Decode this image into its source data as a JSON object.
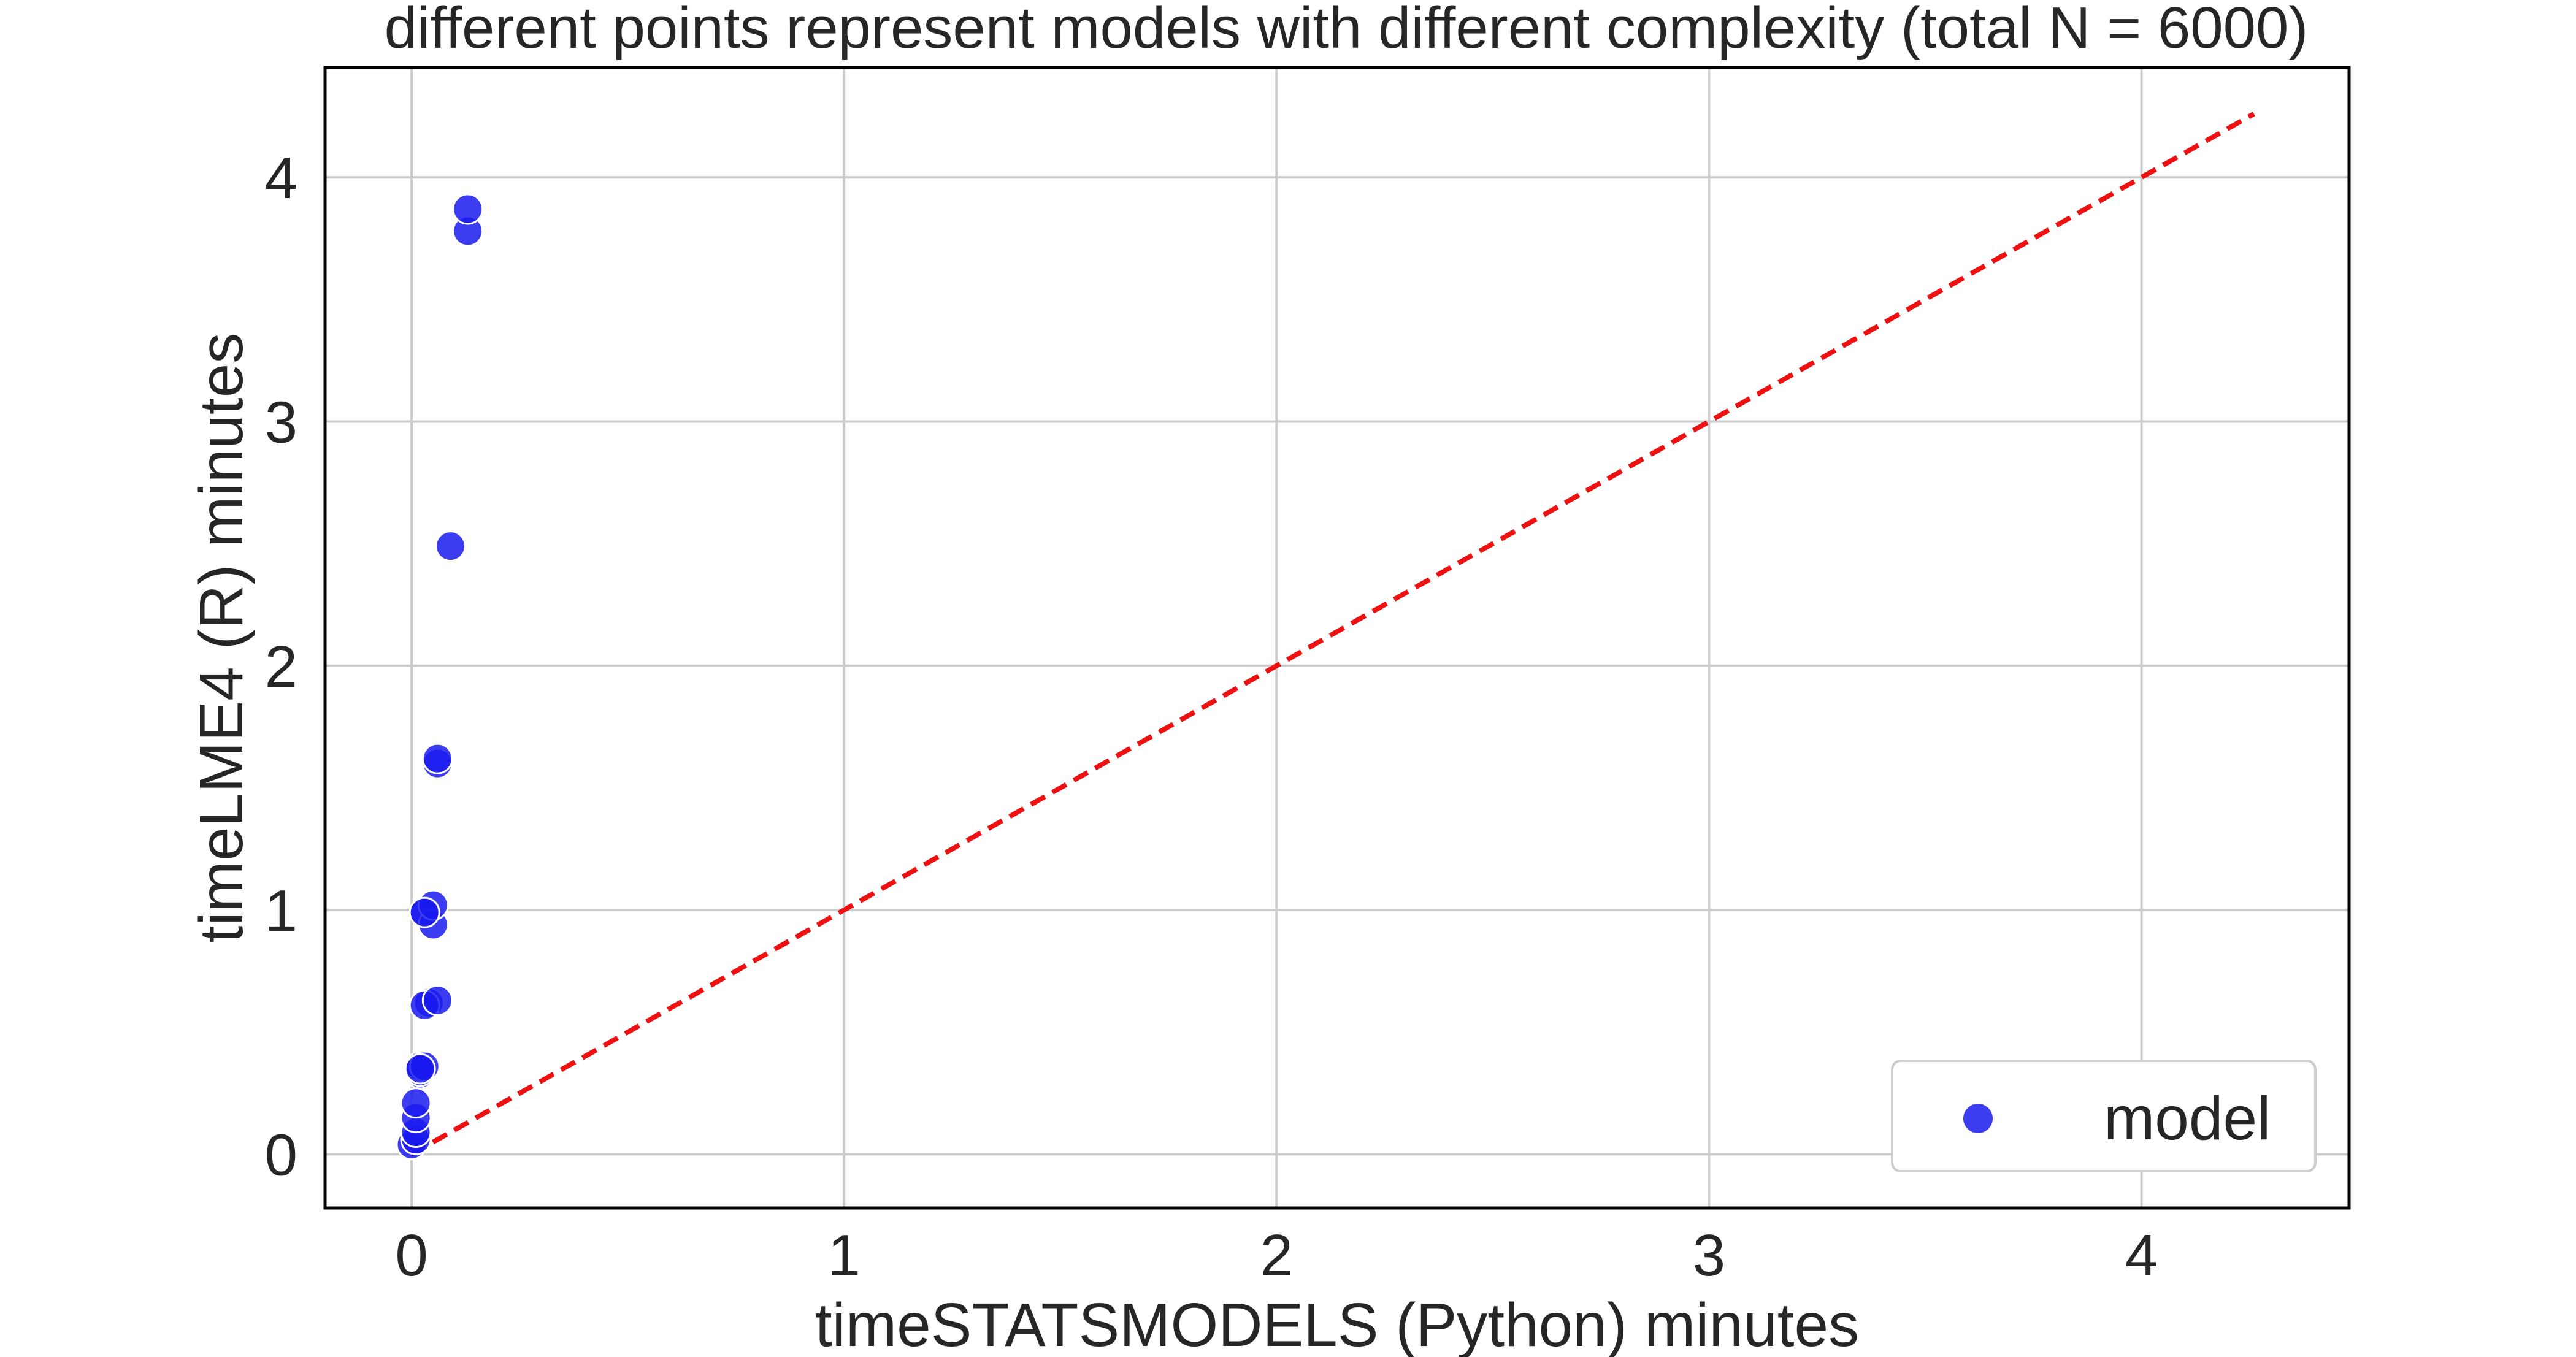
{
  "chart_data": {
    "type": "scatter",
    "title": "different points represent models with different complexity (total N = 6000)",
    "xlabel": "timeSTATSMODELS (Python) minutes",
    "ylabel": "timeLME4 (R) minutes",
    "xlim": [
      -0.2,
      4.48
    ],
    "ylim": [
      -0.22,
      4.45
    ],
    "xticks": [
      0,
      1,
      2,
      3,
      4
    ],
    "yticks": [
      0,
      1,
      2,
      3,
      4
    ],
    "xtick_labels": [
      "0",
      "1",
      "2",
      "3",
      "4"
    ],
    "ytick_labels": [
      "0",
      "1",
      "2",
      "3",
      "4"
    ],
    "grid": true,
    "legend_position": "lower-right",
    "series": [
      {
        "name": "model",
        "color": "#1a1aee",
        "x": [
          0.0,
          0.01,
          0.01,
          0.01,
          0.01,
          0.02,
          0.02,
          0.02,
          0.03,
          0.02,
          0.04,
          0.03,
          0.03,
          0.06,
          0.05,
          0.05,
          0.03,
          0.06,
          0.06,
          0.09,
          0.13,
          0.13
        ],
        "y": [
          0.04,
          0.06,
          0.09,
          0.15,
          0.21,
          0.33,
          0.34,
          0.36,
          0.36,
          0.35,
          0.62,
          0.61,
          0.99,
          0.63,
          0.94,
          1.02,
          0.99,
          1.6,
          1.62,
          2.49,
          3.78,
          3.87
        ]
      }
    ],
    "reference_line": {
      "style": "dashed",
      "color": "#ee1111",
      "x": [
        0.0,
        4.26
      ],
      "y": [
        0.0,
        4.26
      ]
    }
  }
}
